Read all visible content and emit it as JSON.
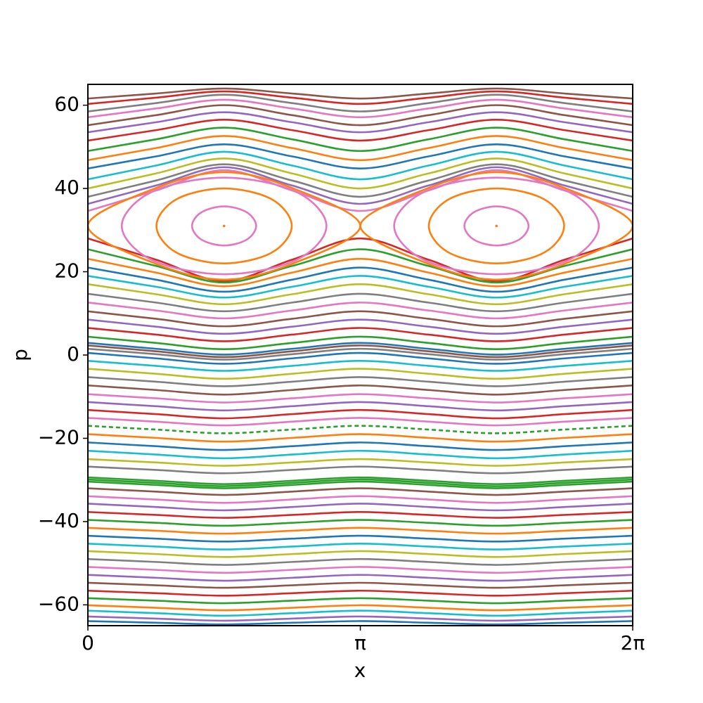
{
  "chart_data": {
    "type": "line",
    "xlabel": "x",
    "ylabel": "p",
    "xlim": [
      0,
      6.283
    ],
    "ylim": [
      -65,
      65
    ],
    "xticks": [
      0,
      {
        "value": 3.142,
        "label": "π"
      },
      {
        "value": 6.283,
        "label": "2π"
      }
    ],
    "yticks": [
      {
        "value": -60,
        "label": "−60"
      },
      {
        "value": -40,
        "label": "−40"
      },
      {
        "value": -20,
        "label": "−20"
      },
      0,
      20,
      40,
      60
    ],
    "x": [
      0,
      0.785,
      1.571,
      2.356,
      3.142,
      3.927,
      4.712,
      5.498,
      6.283
    ],
    "series": [
      {
        "color": "#8c564b",
        "values": [
          61.6,
          62.8,
          64.0,
          62.8,
          61.6,
          62.8,
          64.0,
          62.8,
          61.6
        ]
      },
      {
        "color": "#d62728",
        "values": [
          60.3,
          61.8,
          63.3,
          61.8,
          60.3,
          61.8,
          63.3,
          61.8,
          60.3
        ]
      },
      {
        "color": "#7f7f7f",
        "values": [
          58.5,
          60.5,
          62.5,
          60.5,
          58.5,
          60.5,
          62.5,
          60.5,
          58.5
        ]
      },
      {
        "color": "#e377c2",
        "values": [
          57.1,
          59.2,
          61.3,
          59.2,
          57.1,
          59.2,
          61.3,
          59.2,
          57.1
        ]
      },
      {
        "color": "#8c564b",
        "values": [
          55.2,
          57.6,
          60.0,
          57.6,
          55.2,
          57.6,
          60.0,
          57.6,
          55.2
        ]
      },
      {
        "color": "#9467bd",
        "values": [
          53.5,
          55.9,
          58.3,
          55.9,
          53.5,
          55.9,
          58.3,
          55.9,
          53.5
        ]
      },
      {
        "color": "#d62728",
        "values": [
          51.5,
          54.0,
          56.5,
          54.0,
          51.5,
          54.0,
          56.5,
          54.0,
          51.5
        ]
      },
      {
        "color": "#2ca02c",
        "values": [
          49.0,
          51.8,
          54.6,
          51.8,
          49.0,
          51.8,
          54.6,
          51.8,
          49.0
        ]
      },
      {
        "color": "#ff7f0e",
        "values": [
          46.8,
          49.7,
          52.6,
          49.7,
          46.8,
          49.7,
          52.6,
          49.7,
          46.8
        ]
      },
      {
        "color": "#1f77b4",
        "values": [
          44.8,
          47.7,
          50.6,
          47.7,
          44.8,
          47.7,
          50.6,
          47.7,
          44.8
        ]
      },
      {
        "color": "#17becf",
        "values": [
          42.2,
          45.5,
          48.8,
          45.5,
          42.2,
          45.5,
          48.8,
          45.5,
          42.2
        ]
      },
      {
        "color": "#bcbd22",
        "values": [
          40.0,
          43.6,
          47.2,
          43.6,
          40.0,
          43.6,
          47.2,
          43.6,
          40.0
        ]
      },
      {
        "color": "#7f7f7f",
        "values": [
          38.0,
          41.9,
          45.8,
          41.9,
          38.0,
          41.9,
          45.8,
          41.9,
          38.0
        ]
      },
      {
        "color": "#9467bd",
        "values": [
          36.3,
          40.7,
          45.1,
          40.7,
          36.3,
          40.7,
          45.1,
          40.7,
          36.3
        ]
      },
      {
        "color": "#e377c2",
        "values": [
          34.6,
          39.5,
          44.4,
          39.5,
          34.6,
          39.5,
          44.4,
          39.5,
          34.6
        ]
      },
      {
        "color": "#d62728",
        "values": [
          28.0,
          22.9,
          17.8,
          22.9,
          28.0,
          22.9,
          17.8,
          22.9,
          28.0
        ]
      },
      {
        "color": "#2ca02c",
        "values": [
          25.4,
          21.4,
          17.4,
          21.4,
          25.4,
          21.4,
          17.4,
          21.4,
          25.4
        ]
      },
      {
        "color": "#ff7f0e",
        "values": [
          23.1,
          19.8,
          16.5,
          19.8,
          23.1,
          19.8,
          16.5,
          19.8,
          23.1
        ]
      },
      {
        "color": "#1f77b4",
        "values": [
          21.0,
          18.1,
          15.2,
          18.1,
          21.0,
          18.1,
          15.2,
          18.1,
          21.0
        ]
      },
      {
        "color": "#17becf",
        "values": [
          19.0,
          16.4,
          13.8,
          16.4,
          19.0,
          16.4,
          13.8,
          16.4,
          19.0
        ]
      },
      {
        "color": "#bcbd22",
        "values": [
          17.0,
          14.6,
          12.2,
          14.6,
          17.0,
          14.6,
          12.2,
          14.6,
          17.0
        ]
      },
      {
        "color": "#7f7f7f",
        "values": [
          14.7,
          12.6,
          10.5,
          12.6,
          14.7,
          12.6,
          10.5,
          12.6,
          14.7
        ]
      },
      {
        "color": "#e377c2",
        "values": [
          12.6,
          10.7,
          8.8,
          10.7,
          12.6,
          10.7,
          8.8,
          10.7,
          12.6
        ]
      },
      {
        "color": "#8c564b",
        "values": [
          10.5,
          8.7,
          6.9,
          8.7,
          10.5,
          8.7,
          6.9,
          8.7,
          10.5
        ]
      },
      {
        "color": "#9467bd",
        "values": [
          8.5,
          6.8,
          5.1,
          6.8,
          8.5,
          6.8,
          5.1,
          6.8,
          8.5
        ]
      },
      {
        "color": "#d62728",
        "values": [
          6.5,
          4.9,
          3.3,
          4.9,
          6.5,
          4.9,
          3.3,
          4.9,
          6.5
        ]
      },
      {
        "color": "#2ca02c",
        "values": [
          4.4,
          2.9,
          1.4,
          2.9,
          4.4,
          2.9,
          1.4,
          2.9,
          4.4
        ]
      },
      {
        "color": "#1f77b4",
        "values": [
          2.9,
          1.5,
          0.1,
          1.5,
          2.9,
          1.5,
          0.1,
          1.5,
          2.9
        ]
      },
      {
        "color": "#8c564b",
        "values": [
          2.3,
          0.9,
          -0.5,
          0.9,
          2.3,
          0.9,
          -0.5,
          0.9,
          2.3
        ]
      },
      {
        "color": "#7f7f7f",
        "values": [
          1.5,
          0.2,
          -1.1,
          0.2,
          1.5,
          0.2,
          -1.1,
          0.2,
          1.5
        ]
      },
      {
        "color": "#1f77b4",
        "values": [
          0.5,
          -0.8,
          -2.1,
          -0.8,
          0.5,
          -0.8,
          -2.1,
          -0.8,
          0.5
        ]
      },
      {
        "color": "#17becf",
        "values": [
          -1.4,
          -2.6,
          -3.8,
          -2.6,
          -1.4,
          -2.6,
          -3.8,
          -2.6,
          -1.4
        ]
      },
      {
        "color": "#bcbd22",
        "values": [
          -3.3,
          -4.5,
          -5.7,
          -4.5,
          -3.3,
          -4.5,
          -5.7,
          -4.5,
          -3.3
        ]
      },
      {
        "color": "#7f7f7f",
        "values": [
          -5.3,
          -6.4,
          -7.5,
          -6.4,
          -5.3,
          -6.4,
          -7.5,
          -6.4,
          -5.3
        ]
      },
      {
        "color": "#8c564b",
        "values": [
          -7.3,
          -8.4,
          -9.5,
          -8.4,
          -7.3,
          -8.4,
          -9.5,
          -8.4,
          -7.3
        ]
      },
      {
        "color": "#e377c2",
        "values": [
          -9.4,
          -10.4,
          -11.4,
          -10.4,
          -9.4,
          -10.4,
          -11.4,
          -10.4,
          -9.4
        ]
      },
      {
        "color": "#9467bd",
        "values": [
          -11.3,
          -12.3,
          -13.3,
          -12.3,
          -11.3,
          -12.3,
          -13.3,
          -12.3,
          -11.3
        ]
      },
      {
        "color": "#d62728",
        "values": [
          -13.2,
          -14.2,
          -15.2,
          -14.2,
          -13.2,
          -14.2,
          -15.2,
          -14.2,
          -13.2
        ]
      },
      {
        "color": "#e377c2",
        "values": [
          -15.1,
          -16.0,
          -16.9,
          -16.0,
          -15.1,
          -16.0,
          -16.9,
          -16.0,
          -15.1
        ]
      },
      {
        "color": "#2ca02c",
        "linestyle": "dashed",
        "values": [
          -17.0,
          -17.9,
          -18.8,
          -17.9,
          -17.0,
          -17.9,
          -18.8,
          -17.9,
          -17.0
        ]
      },
      {
        "color": "#ff7f0e",
        "values": [
          -19.0,
          -19.9,
          -20.8,
          -19.9,
          -19.0,
          -19.9,
          -20.8,
          -19.9,
          -19.0
        ]
      },
      {
        "color": "#1f77b4",
        "values": [
          -21.0,
          -21.9,
          -22.8,
          -21.9,
          -21.0,
          -21.9,
          -22.8,
          -21.9,
          -21.0
        ]
      },
      {
        "color": "#17becf",
        "values": [
          -23.0,
          -23.9,
          -24.8,
          -23.9,
          -23.0,
          -23.9,
          -24.8,
          -23.9,
          -23.0
        ]
      },
      {
        "color": "#bcbd22",
        "values": [
          -25.0,
          -25.8,
          -26.6,
          -25.8,
          -25.0,
          -25.8,
          -26.6,
          -25.8,
          -25.0
        ]
      },
      {
        "color": "#7f7f7f",
        "values": [
          -26.8,
          -27.6,
          -28.4,
          -27.6,
          -26.8,
          -27.6,
          -28.4,
          -27.6,
          -26.8
        ]
      },
      {
        "color": "#2ca02c",
        "values": [
          -29.4,
          -30.2,
          -31.0,
          -30.2,
          -29.4,
          -30.2,
          -31.0,
          -30.2,
          -29.4
        ]
      },
      {
        "color": "#2ca02c",
        "values": [
          -29.9,
          -30.7,
          -31.5,
          -30.7,
          -29.9,
          -30.7,
          -31.5,
          -30.7,
          -29.9
        ]
      },
      {
        "color": "#2ca02c",
        "values": [
          -30.4,
          -31.2,
          -32.0,
          -31.2,
          -30.4,
          -31.2,
          -32.0,
          -31.2,
          -30.4
        ]
      },
      {
        "color": "#8c564b",
        "values": [
          -32.0,
          -32.8,
          -33.6,
          -32.8,
          -32.0,
          -32.8,
          -33.6,
          -32.8,
          -32.0
        ]
      },
      {
        "color": "#e377c2",
        "values": [
          -33.9,
          -34.7,
          -35.5,
          -34.7,
          -33.9,
          -34.7,
          -35.5,
          -34.7,
          -33.9
        ]
      },
      {
        "color": "#9467bd",
        "values": [
          -35.7,
          -36.5,
          -37.3,
          -36.5,
          -35.7,
          -36.5,
          -37.3,
          -36.5,
          -35.7
        ]
      },
      {
        "color": "#d62728",
        "values": [
          -37.7,
          -38.4,
          -39.1,
          -38.4,
          -37.7,
          -38.4,
          -39.1,
          -38.4,
          -37.7
        ]
      },
      {
        "color": "#2ca02c",
        "values": [
          -39.6,
          -40.3,
          -41.0,
          -40.3,
          -39.6,
          -40.3,
          -41.0,
          -40.3,
          -39.6
        ]
      },
      {
        "color": "#ff7f0e",
        "values": [
          -41.5,
          -42.2,
          -42.9,
          -42.2,
          -41.5,
          -42.2,
          -42.9,
          -42.2,
          -41.5
        ]
      },
      {
        "color": "#1f77b4",
        "values": [
          -43.4,
          -44.1,
          -44.8,
          -44.1,
          -43.4,
          -44.1,
          -44.8,
          -44.1,
          -43.4
        ]
      },
      {
        "color": "#17becf",
        "values": [
          -45.3,
          -46.0,
          -46.7,
          -46.0,
          -45.3,
          -46.0,
          -46.7,
          -46.0,
          -45.3
        ]
      },
      {
        "color": "#bcbd22",
        "values": [
          -47.1,
          -47.8,
          -48.5,
          -47.8,
          -47.1,
          -47.8,
          -48.5,
          -47.8,
          -47.1
        ]
      },
      {
        "color": "#7f7f7f",
        "values": [
          -49.0,
          -49.7,
          -50.4,
          -49.7,
          -49.0,
          -49.7,
          -50.4,
          -49.7,
          -49.0
        ]
      },
      {
        "color": "#e377c2",
        "values": [
          -50.9,
          -51.6,
          -52.3,
          -51.6,
          -50.9,
          -51.6,
          -52.3,
          -51.6,
          -50.9
        ]
      },
      {
        "color": "#9467bd",
        "values": [
          -52.8,
          -53.5,
          -54.2,
          -53.5,
          -52.8,
          -53.5,
          -54.2,
          -53.5,
          -52.8
        ]
      },
      {
        "color": "#8c564b",
        "values": [
          -54.7,
          -55.3,
          -55.9,
          -55.3,
          -54.7,
          -55.3,
          -55.9,
          -55.3,
          -54.7
        ]
      },
      {
        "color": "#d62728",
        "values": [
          -56.6,
          -57.2,
          -57.8,
          -57.2,
          -56.6,
          -57.2,
          -57.8,
          -57.2,
          -56.6
        ]
      },
      {
        "color": "#2ca02c",
        "values": [
          -58.4,
          -59.0,
          -59.6,
          -59.0,
          -58.4,
          -59.0,
          -59.6,
          -59.0,
          -58.4
        ]
      },
      {
        "color": "#ff7f0e",
        "values": [
          -60.1,
          -60.7,
          -61.3,
          -60.7,
          -60.1,
          -60.7,
          -61.3,
          -60.7,
          -60.1
        ]
      },
      {
        "color": "#17becf",
        "values": [
          -61.4,
          -62.0,
          -62.6,
          -62.0,
          -61.4,
          -62.0,
          -62.6,
          -62.0,
          -61.4
        ]
      },
      {
        "color": "#9467bd",
        "values": [
          -62.8,
          -63.3,
          -63.8,
          -63.3,
          -62.8,
          -63.3,
          -63.8,
          -63.3,
          -62.8
        ]
      },
      {
        "color": "#1f77b4",
        "values": [
          -63.9,
          -64.3,
          -64.7,
          -64.3,
          -63.9,
          -64.3,
          -64.7,
          -64.3,
          -63.9
        ]
      },
      {
        "color": "#ff7f0e",
        "x": [
          0,
          0.785,
          1.571,
          2.356,
          3.142,
          2.356,
          1.571,
          0.785
        ],
        "values": [
          31,
          40.1,
          43.9,
          40.1,
          31,
          21.9,
          18.1,
          21.9
        ]
      },
      {
        "color": "#ff7f0e",
        "x": [
          3.142,
          3.927,
          4.712,
          5.498,
          6.283,
          5.498,
          4.712,
          3.927
        ],
        "values": [
          31,
          40.1,
          43.9,
          40.1,
          31,
          21.9,
          18.1,
          21.9
        ]
      },
      {
        "color": "#e377c2",
        "x": [
          1.571,
          2.401,
          2.751,
          2.401,
          1.571,
          0.741,
          0.391,
          0.741
        ],
        "values": [
          42.6,
          39.2,
          31,
          22.8,
          19.4,
          22.8,
          31,
          39.2
        ]
      },
      {
        "color": "#e377c2",
        "x": [
          4.712,
          5.542,
          5.892,
          5.542,
          4.712,
          3.882,
          3.532,
          3.882
        ],
        "values": [
          42.6,
          39.2,
          31,
          22.8,
          19.4,
          22.8,
          31,
          39.2
        ]
      },
      {
        "color": "#ff7f0e",
        "x": [
          1.571,
          2.121,
          2.351,
          2.121,
          1.571,
          1.021,
          0.791,
          1.021
        ],
        "values": [
          40,
          37.4,
          31,
          24.6,
          22,
          24.6,
          31,
          37.4
        ]
      },
      {
        "color": "#ff7f0e",
        "x": [
          4.712,
          5.262,
          5.492,
          5.262,
          4.712,
          4.162,
          3.932,
          4.162
        ],
        "values": [
          40,
          37.4,
          31,
          24.6,
          22,
          24.6,
          31,
          37.4
        ]
      },
      {
        "color": "#e377c2",
        "x": [
          1.571,
          1.831,
          1.941,
          1.831,
          1.571,
          1.311,
          1.201,
          1.311
        ],
        "values": [
          35.7,
          34.3,
          31,
          27.7,
          26.3,
          27.7,
          31,
          34.3
        ]
      },
      {
        "color": "#e377c2",
        "x": [
          4.712,
          4.972,
          5.082,
          4.972,
          4.712,
          4.452,
          4.342,
          4.452
        ],
        "values": [
          35.7,
          34.3,
          31,
          27.7,
          26.3,
          27.7,
          31,
          34.3
        ]
      },
      {
        "color": "#ff7f0e",
        "x": [
          1.571
        ],
        "values": [
          31
        ]
      },
      {
        "color": "#ff7f0e",
        "x": [
          4.712
        ],
        "values": [
          31
        ]
      }
    ]
  }
}
